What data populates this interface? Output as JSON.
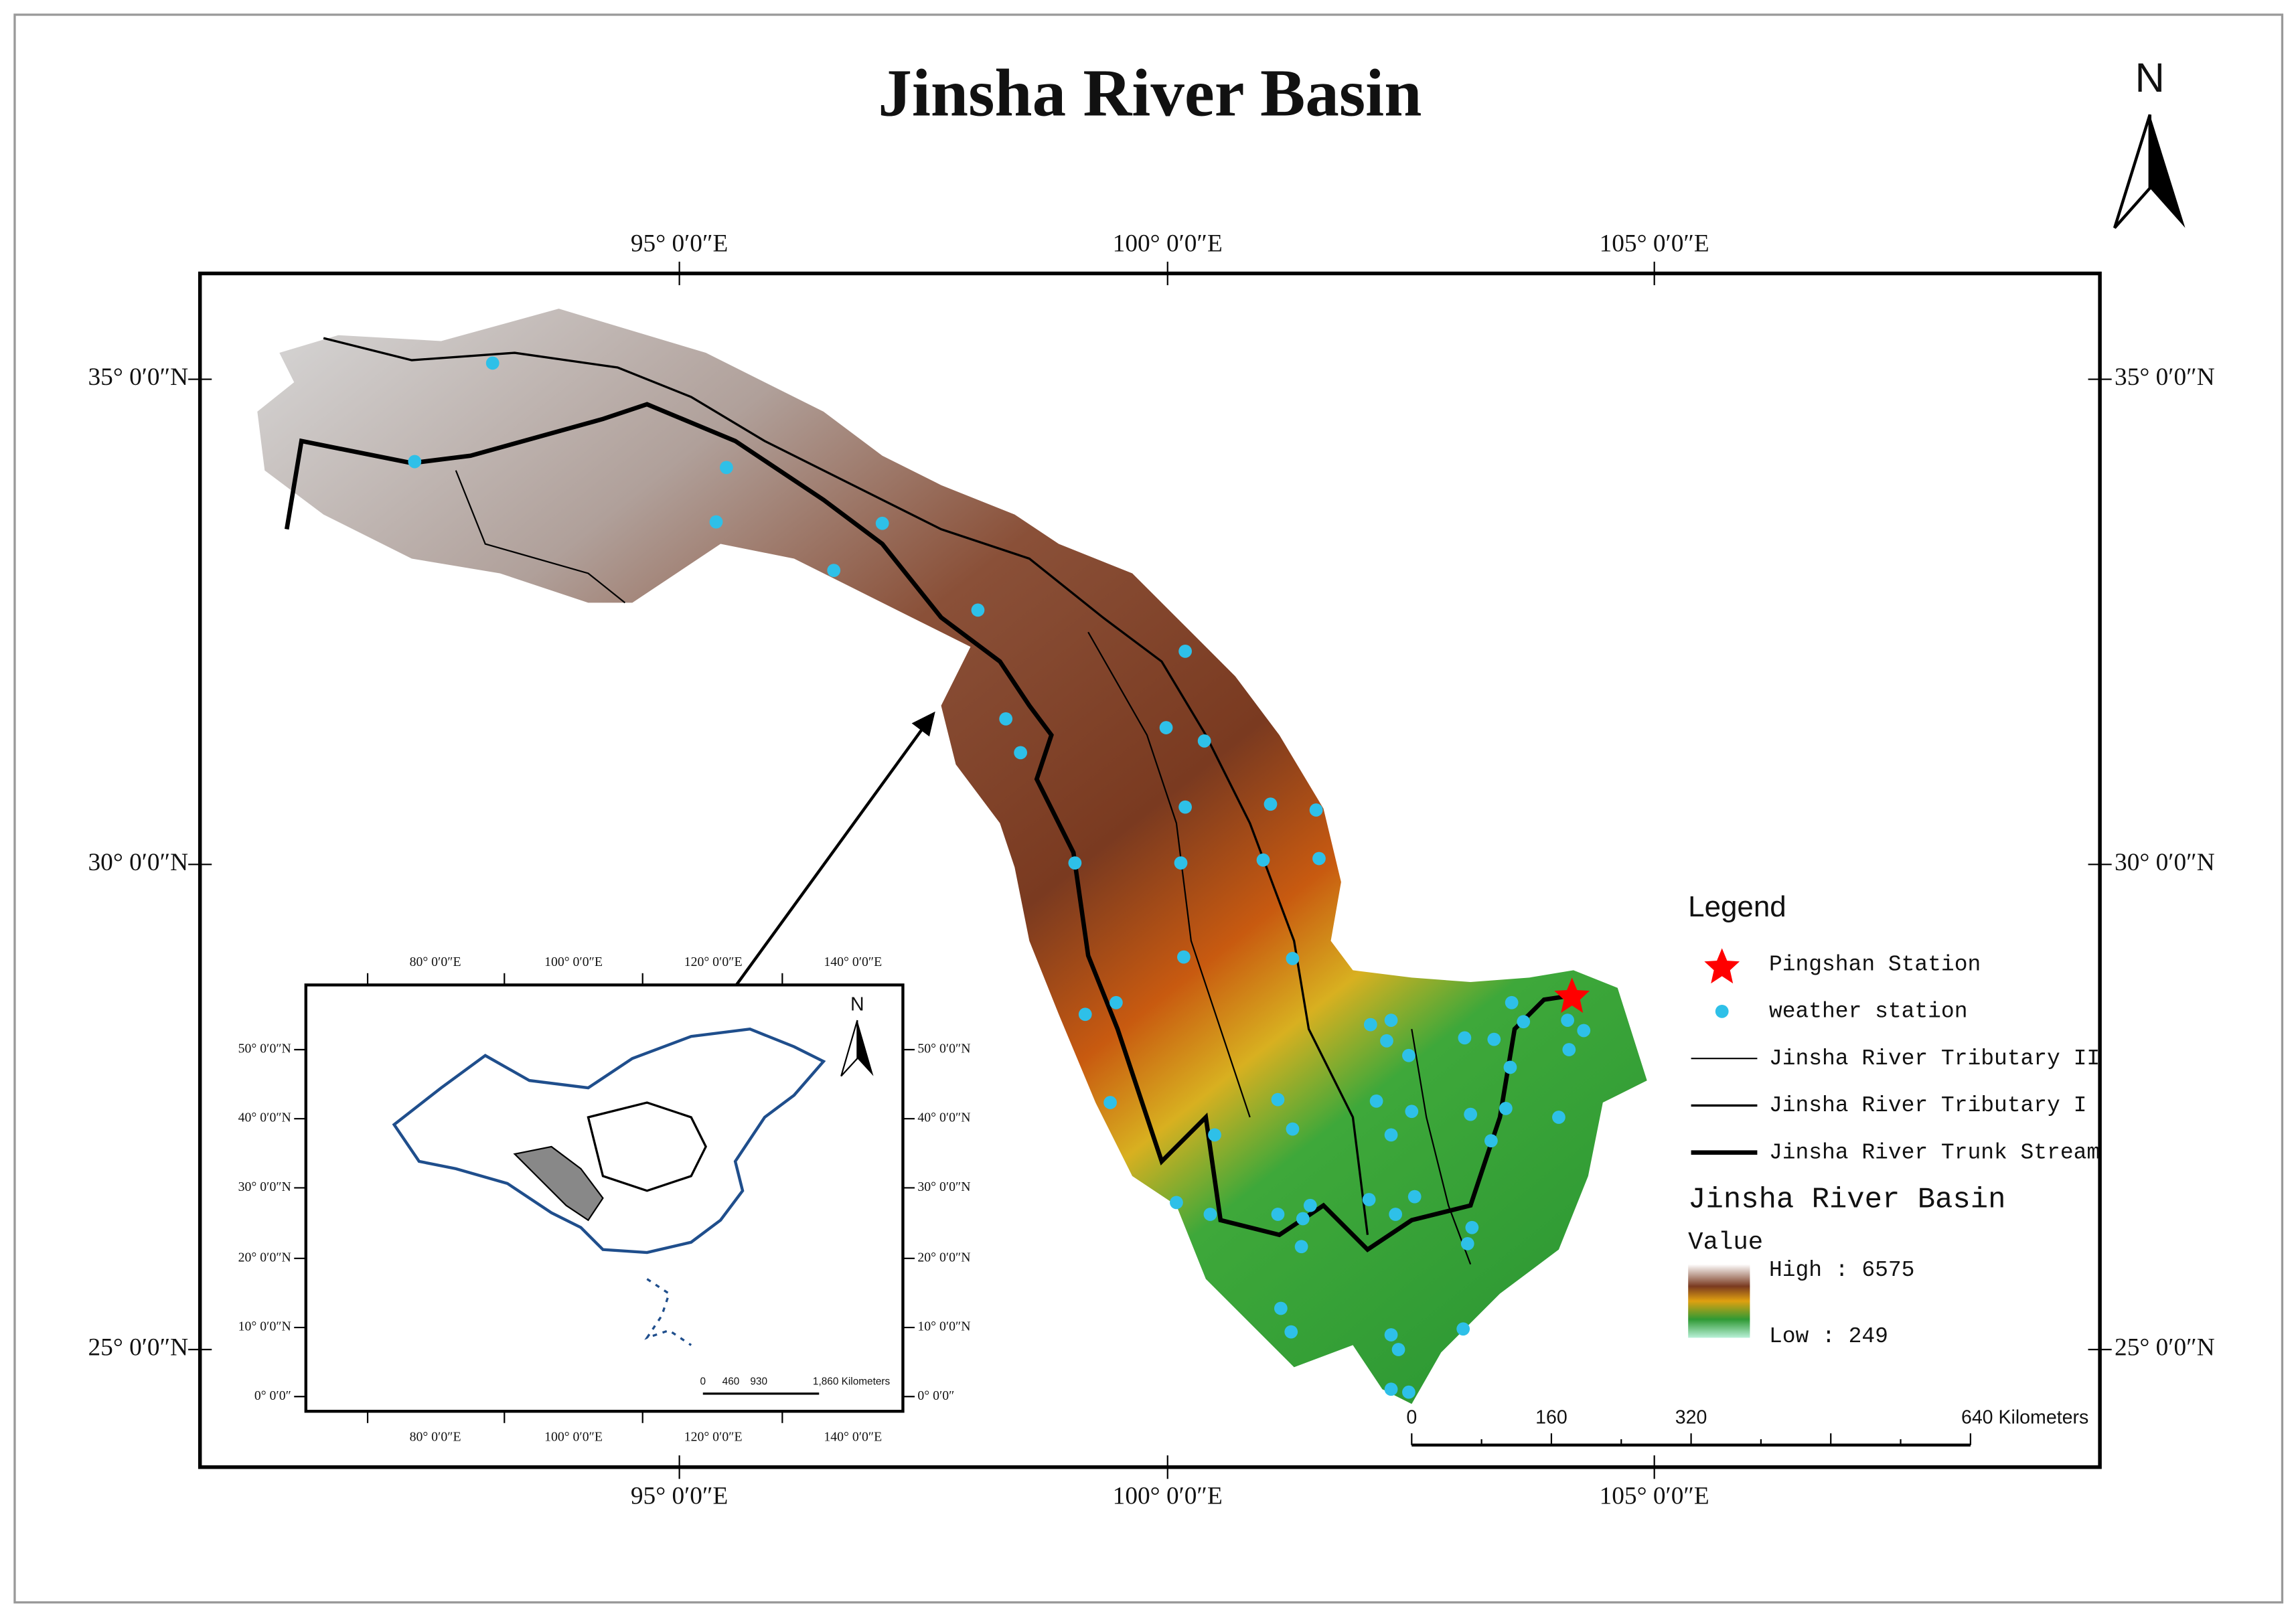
{
  "title": "Jinsha River Basin",
  "north_label": "N",
  "map": {
    "lon_labels": [
      "95° 0′0″E",
      "100° 0′0″E",
      "105° 0′0″E"
    ],
    "lat_labels": [
      "35° 0′0″N",
      "30° 0′0″N",
      "25° 0′0″N"
    ]
  },
  "legend": {
    "title": "Legend",
    "items": [
      "Pingshan Station",
      "weather station",
      "Jinsha River Tributary II",
      "Jinsha River Tributary I",
      "Jinsha River Trunk Stream"
    ],
    "raster_title": "Jinsha River Basin",
    "raster_field": "Value",
    "high": "High : 6575",
    "low": "Low : 249"
  },
  "scale_bar": [
    "0",
    "160",
    "320",
    "640 Kilometers"
  ],
  "inset": {
    "lon_labels": [
      "80° 0′0″E",
      "100° 0′0″E",
      "120° 0′0″E",
      "140° 0′0″E"
    ],
    "lat_labels": [
      "50° 0′0″N",
      "40° 0′0″N",
      "30° 0′0″N",
      "20° 0′0″N",
      "10° 0′0″N",
      "0° 0′0″"
    ],
    "north_label": "N",
    "scale_bar": [
      "0",
      "460",
      "930",
      "1,860 Kilometers"
    ]
  }
}
